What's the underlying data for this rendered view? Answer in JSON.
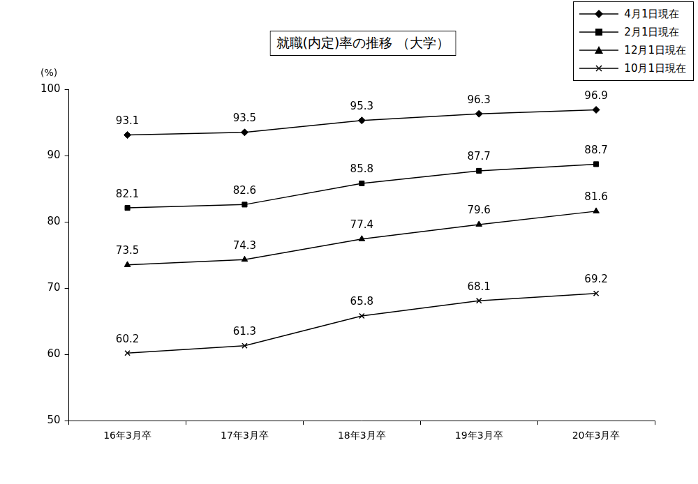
{
  "chart_data": {
    "type": "line",
    "title": "就職(内定)率の推移 （大学）",
    "y_label": "(%)",
    "categories": [
      "16年3月卒",
      "17年3月卒",
      "18年3月卒",
      "19年3月卒",
      "20年3月卒"
    ],
    "series": [
      {
        "name": "4月1日現在",
        "color": "#000000",
        "marker": "diamond",
        "values": [
          93.1,
          93.5,
          95.3,
          96.3,
          96.9
        ]
      },
      {
        "name": "2月1日現在",
        "color": "#000000",
        "marker": "square",
        "values": [
          82.1,
          82.6,
          85.8,
          87.7,
          88.7
        ]
      },
      {
        "name": "12月1日現在",
        "color": "#000000",
        "marker": "triangle",
        "values": [
          73.5,
          74.3,
          77.4,
          79.6,
          81.6
        ]
      },
      {
        "name": "10月1日現在",
        "color": "#000000",
        "marker": "x",
        "values": [
          60.2,
          61.3,
          65.8,
          68.1,
          69.2
        ]
      }
    ],
    "ylim": [
      50,
      100
    ],
    "yticks": [
      50,
      60,
      70,
      80,
      90,
      100
    ],
    "grid": false,
    "legend": "upper right",
    "data_labels": true
  }
}
